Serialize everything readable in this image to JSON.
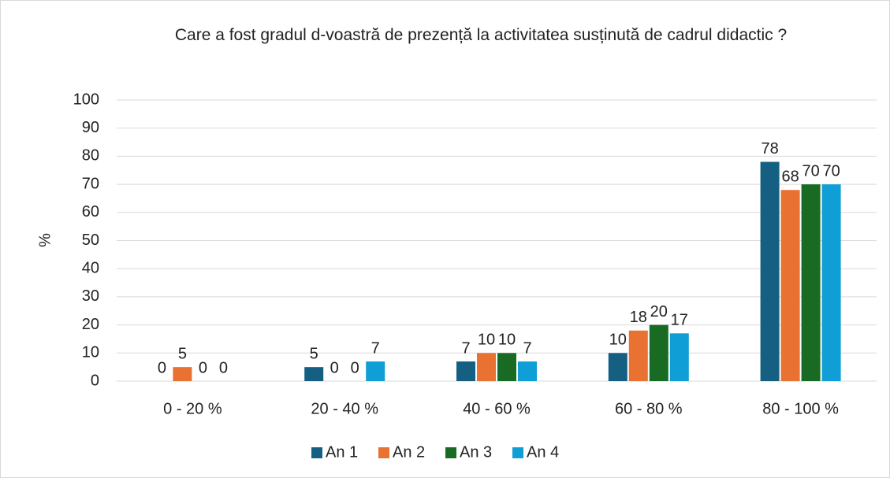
{
  "chart_data": {
    "type": "bar",
    "title": "Care a fost gradul d-voastră de prezență la activitatea susținută de cadrul didactic ?",
    "y_label": "%",
    "categories": [
      "0 - 20 %",
      "20 - 40 %",
      "40 - 60 %",
      "60 - 80 %",
      "80 - 100 %"
    ],
    "series": [
      {
        "name": "An 1",
        "color": "#156082",
        "values": [
          0,
          5,
          7,
          10,
          78
        ]
      },
      {
        "name": "An 2",
        "color": "#e97132",
        "values": [
          5,
          0,
          10,
          18,
          68
        ]
      },
      {
        "name": "An 3",
        "color": "#196b24",
        "values": [
          0,
          0,
          10,
          20,
          70
        ]
      },
      {
        "name": "An 4",
        "color": "#0f9ed5",
        "values": [
          0,
          7,
          7,
          17,
          70
        ]
      }
    ],
    "ylim": [
      0,
      100
    ],
    "yticks": [
      0,
      10,
      20,
      30,
      40,
      50,
      60,
      70,
      80,
      90,
      100
    ],
    "grid": true,
    "legend": "bottom"
  }
}
